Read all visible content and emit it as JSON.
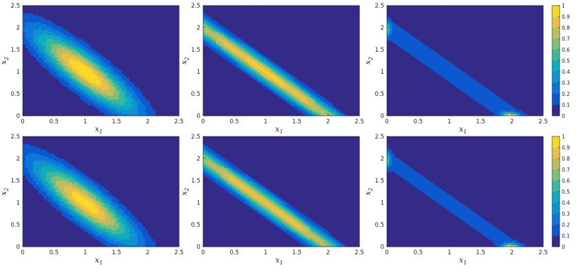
{
  "chart_data": [
    {
      "type": "heatmap",
      "panel": "row1-col1",
      "xlabel": "x",
      "xlabel_sub": "1",
      "ylabel": "x",
      "ylabel_sub": "2",
      "xlim": [
        0,
        2.5
      ],
      "ylim": [
        0,
        2.5
      ],
      "xticks": [
        "0",
        "0.5",
        "1",
        "1.5",
        "2",
        "2.5"
      ],
      "yticks": [
        "0",
        "0.5",
        "1",
        "1.5",
        "2",
        "2.5"
      ],
      "pattern": {
        "kind": "ridge",
        "ridge_sum": 2.0,
        "center": 1.0,
        "across_width": 0.22,
        "along_width": 0.55,
        "peak": 1.0
      },
      "colorbar": false
    },
    {
      "type": "heatmap",
      "panel": "row1-col2",
      "xlabel": "x",
      "xlabel_sub": "1",
      "ylabel": "x",
      "ylabel_sub": "2",
      "xlim": [
        0,
        2.5
      ],
      "ylim": [
        0,
        2.5
      ],
      "xticks": [
        "0",
        "0.5",
        "1",
        "1.5",
        "2",
        "2.5"
      ],
      "yticks": [
        "0",
        "0.5",
        "1",
        "1.5",
        "2",
        "2.5"
      ],
      "pattern": {
        "kind": "ridge",
        "ridge_sum": 2.0,
        "center": 1.0,
        "across_width": 0.12,
        "along_width": 1.4,
        "peak": 0.92
      },
      "colorbar": false
    },
    {
      "type": "heatmap",
      "panel": "row1-col3",
      "xlabel": "x",
      "xlabel_sub": "1",
      "ylabel": "x",
      "ylabel_sub": "2",
      "xlim": [
        0,
        2.5
      ],
      "ylim": [
        0,
        2.5
      ],
      "xticks": [
        "0",
        "0.5",
        "1",
        "1.5",
        "2",
        "2.5"
      ],
      "yticks": [
        "0",
        "0.5",
        "1",
        "1.5",
        "2",
        "2.5"
      ],
      "pattern": {
        "kind": "endpoints",
        "ridge_sum": 2.0,
        "base": 0.17,
        "spot_peak": 0.82
      },
      "colorbar": true
    },
    {
      "type": "heatmap",
      "panel": "row2-col1",
      "xlabel": "x",
      "xlabel_sub": "1",
      "ylabel": "x",
      "ylabel_sub": "2",
      "xlim": [
        0,
        2.5
      ],
      "ylim": [
        0,
        2.5
      ],
      "xticks": [
        "0",
        "0.5",
        "1",
        "1.5",
        "2",
        "2.5"
      ],
      "yticks": [
        "0",
        "0.5",
        "1",
        "1.5",
        "2",
        "2.5"
      ],
      "pattern": {
        "kind": "ridge",
        "ridge_sum": 2.0,
        "center": 1.0,
        "across_width": 0.22,
        "along_width": 0.55,
        "peak": 0.97
      },
      "colorbar": false
    },
    {
      "type": "heatmap",
      "panel": "row2-col2",
      "xlabel": "x",
      "xlabel_sub": "1",
      "ylabel": "x",
      "ylabel_sub": "2",
      "xlim": [
        0,
        2.5
      ],
      "ylim": [
        0,
        2.5
      ],
      "xticks": [
        "0",
        "0.5",
        "1",
        "1.5",
        "2",
        "2.5"
      ],
      "yticks": [
        "0",
        "0.5",
        "1",
        "1.5",
        "2",
        "2.5"
      ],
      "pattern": {
        "kind": "ridge",
        "ridge_sum": 2.0,
        "center": 1.0,
        "across_width": 0.12,
        "along_width": 1.4,
        "peak": 0.9
      },
      "colorbar": false
    },
    {
      "type": "heatmap",
      "panel": "row2-col3",
      "xlabel": "x",
      "xlabel_sub": "1",
      "ylabel": "x",
      "ylabel_sub": "2",
      "xlim": [
        0,
        2.5
      ],
      "ylim": [
        0,
        2.5
      ],
      "xticks": [
        "0",
        "0.5",
        "1",
        "1.5",
        "2",
        "2.5"
      ],
      "yticks": [
        "0",
        "0.5",
        "1",
        "1.5",
        "2",
        "2.5"
      ],
      "pattern": {
        "kind": "endpoints",
        "ridge_sum": 2.0,
        "base": 0.15,
        "spot_peak": 0.85
      },
      "colorbar": true
    }
  ],
  "colorbar": {
    "range": [
      0,
      1
    ],
    "ticks": [
      "0",
      "0.1",
      "0.2",
      "0.3",
      "0.4",
      "0.5",
      "0.6",
      "0.7",
      "0.8",
      "0.9",
      "1"
    ],
    "colormap": "parula",
    "colormap_stops": [
      "#352a87",
      "#0363e1",
      "#1485d4",
      "#06a7c6",
      "#38b99e",
      "#92bf73",
      "#d9ba56",
      "#fcce2e",
      "#f9fb0e"
    ],
    "contour_levels": 10
  }
}
